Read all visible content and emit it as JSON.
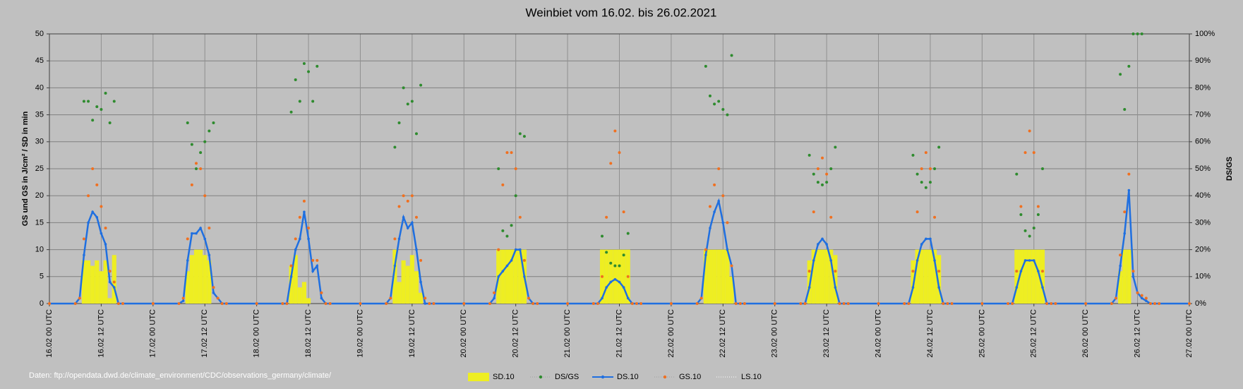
{
  "chart_data": {
    "type": "combo",
    "title": "Weinbiet vom 16.02. bis 26.02.2021",
    "y_label": "GS und GS in J/cm²  /  SD in min",
    "y2_label": "DS/GS",
    "source": "Daten: ftp://opendata.dwd.de/climate_environment/CDC/observations_germany/climate/",
    "x": [
      0,
      6,
      7,
      8,
      9,
      10,
      11,
      12,
      13,
      14,
      15,
      16,
      17,
      24,
      30,
      31,
      32,
      33,
      34,
      35,
      36,
      37,
      38,
      39,
      40,
      41,
      48,
      54,
      55,
      56,
      57,
      58,
      59,
      60,
      61,
      62,
      63,
      64,
      65,
      72,
      78,
      79,
      80,
      81,
      82,
      83,
      84,
      85,
      86,
      87,
      88,
      89,
      96,
      102,
      103,
      104,
      105,
      106,
      107,
      108,
      109,
      110,
      111,
      112,
      113,
      120,
      126,
      127,
      128,
      129,
      130,
      131,
      132,
      133,
      134,
      135,
      136,
      137,
      144,
      150,
      151,
      152,
      153,
      154,
      155,
      156,
      157,
      158,
      159,
      160,
      161,
      168,
      174,
      175,
      176,
      177,
      178,
      179,
      180,
      181,
      182,
      183,
      184,
      185,
      192,
      198,
      199,
      200,
      201,
      202,
      203,
      204,
      205,
      206,
      207,
      208,
      209,
      216,
      222,
      223,
      224,
      225,
      226,
      227,
      228,
      229,
      230,
      231,
      232,
      233,
      240,
      246,
      247,
      248,
      249,
      250,
      251,
      252,
      253,
      254,
      255,
      256,
      257,
      264
    ],
    "xlim": [
      0,
      264
    ],
    "xticks": [
      {
        "value": 0,
        "label": "16.02 00 UTC"
      },
      {
        "value": 12,
        "label": "16.02 12 UTC"
      },
      {
        "value": 24,
        "label": "17.02 00 UTC"
      },
      {
        "value": 36,
        "label": "17.02 12 UTC"
      },
      {
        "value": 48,
        "label": "18.02 00 UTC"
      },
      {
        "value": 60,
        "label": "18.02 12 UTC"
      },
      {
        "value": 72,
        "label": "19.02 00 UTC"
      },
      {
        "value": 84,
        "label": "19.02 12 UTC"
      },
      {
        "value": 96,
        "label": "20.02 00 UTC"
      },
      {
        "value": 108,
        "label": "20.02 12 UTC"
      },
      {
        "value": 120,
        "label": "21.02 00 UTC"
      },
      {
        "value": 132,
        "label": "21.02 12 UTC"
      },
      {
        "value": 144,
        "label": "22.02 00 UTC"
      },
      {
        "value": 156,
        "label": "22.02 12 UTC"
      },
      {
        "value": 168,
        "label": "23.02 00 UTC"
      },
      {
        "value": 180,
        "label": "23.02 12 UTC"
      },
      {
        "value": 192,
        "label": "24.02 00 UTC"
      },
      {
        "value": 204,
        "label": "24.02 12 UTC"
      },
      {
        "value": 216,
        "label": "25.02 00 UTC"
      },
      {
        "value": 228,
        "label": "25.02 12 UTC"
      },
      {
        "value": 240,
        "label": "26.02 00 UTC"
      },
      {
        "value": 252,
        "label": "26.02 12 UTC"
      },
      {
        "value": 264,
        "label": "27.02 00 UTC"
      }
    ],
    "ylim": [
      0,
      50
    ],
    "yticks": [
      0,
      5,
      10,
      15,
      20,
      25,
      30,
      35,
      40,
      45,
      50
    ],
    "y2lim": [
      0,
      100
    ],
    "y2ticks": [
      {
        "value": 0,
        "label": "0%"
      },
      {
        "value": 10,
        "label": "10%"
      },
      {
        "value": 20,
        "label": "20%"
      },
      {
        "value": 30,
        "label": "30%"
      },
      {
        "value": 40,
        "label": "40%"
      },
      {
        "value": 50,
        "label": "50%"
      },
      {
        "value": 60,
        "label": "60%"
      },
      {
        "value": 70,
        "label": "70%"
      },
      {
        "value": 80,
        "label": "80%"
      },
      {
        "value": 90,
        "label": "90%"
      },
      {
        "value": 100,
        "label": "100%"
      }
    ],
    "grid": true,
    "legend": "bottom",
    "series": [
      {
        "name": "SD.10",
        "kind": "bar",
        "color": "#eeee22",
        "values": [
          0,
          0,
          0,
          8,
          8,
          7,
          8,
          6,
          8,
          1,
          9,
          0,
          0,
          0,
          0,
          0,
          6,
          9,
          10,
          10,
          9,
          8,
          0,
          0,
          0,
          0,
          0,
          0,
          0,
          7,
          9,
          3,
          4,
          1,
          0,
          0,
          0,
          0,
          0,
          0,
          0,
          0,
          10,
          4,
          8,
          7,
          9,
          6,
          2,
          0,
          0,
          0,
          0,
          0,
          0,
          10,
          10,
          10,
          10,
          10,
          10,
          10,
          0,
          0,
          0,
          0,
          0,
          0,
          10,
          10,
          10,
          10,
          10,
          10,
          10,
          0,
          0,
          0,
          0,
          0,
          0,
          10,
          10,
          10,
          10,
          10,
          10,
          5,
          0,
          0,
          0,
          0,
          0,
          0,
          8,
          10,
          10,
          10,
          10,
          10,
          9,
          0,
          0,
          0,
          0,
          0,
          0,
          8,
          10,
          10,
          10,
          10,
          10,
          9,
          0,
          0,
          0,
          0,
          0,
          0,
          10,
          10,
          10,
          10,
          10,
          10,
          10,
          0,
          0,
          0,
          0,
          0,
          0,
          6,
          10,
          10,
          0,
          0,
          0,
          0,
          0,
          0,
          0,
          0
        ]
      },
      {
        "name": "DS/GS",
        "kind": "scatter",
        "axis": "y2",
        "color": "#2e8b2e",
        "values": [
          null,
          null,
          null,
          75,
          75,
          68,
          73,
          72,
          78,
          67,
          75,
          null,
          null,
          null,
          null,
          null,
          67,
          59,
          50,
          56,
          60,
          64,
          67,
          null,
          null,
          null,
          null,
          null,
          null,
          71,
          83,
          75,
          89,
          86,
          75,
          88,
          null,
          null,
          null,
          null,
          null,
          null,
          58,
          67,
          80,
          74,
          75,
          63,
          81,
          null,
          null,
          null,
          null,
          null,
          null,
          50,
          27,
          25,
          29,
          40,
          63,
          62,
          null,
          null,
          null,
          null,
          null,
          null,
          25,
          19,
          15,
          14,
          14,
          18,
          26,
          null,
          null,
          null,
          null,
          null,
          null,
          88,
          77,
          74,
          75,
          72,
          70,
          92,
          null,
          null,
          null,
          null,
          null,
          null,
          55,
          48,
          45,
          44,
          45,
          50,
          58,
          null,
          null,
          null,
          null,
          null,
          null,
          55,
          48,
          45,
          43,
          45,
          50,
          58,
          null,
          null,
          null,
          null,
          null,
          null,
          48,
          33,
          27,
          25,
          28,
          33,
          50,
          null,
          null,
          null,
          null,
          null,
          null,
          85,
          72,
          88,
          100,
          100,
          100,
          null,
          null,
          null,
          null,
          null
        ]
      },
      {
        "name": "DS.10",
        "kind": "line",
        "color": "#1f6fe0",
        "values": [
          0,
          0,
          1,
          9,
          15,
          17,
          16,
          13,
          11,
          4,
          3,
          0,
          0,
          0,
          0,
          0.5,
          8,
          13,
          13,
          14,
          12,
          9,
          2,
          1,
          0,
          0,
          0,
          0,
          0,
          5,
          10,
          12,
          17,
          12,
          6,
          7,
          1,
          0,
          0,
          0,
          0,
          1,
          7,
          12,
          16,
          14,
          15,
          10,
          4,
          0,
          0,
          0,
          0,
          0,
          1,
          5,
          6,
          7,
          8,
          10,
          10,
          5,
          1,
          0,
          0,
          0,
          0,
          0,
          1,
          3,
          4,
          4.5,
          4,
          3,
          1,
          0,
          0,
          0,
          0,
          0,
          1,
          9,
          14,
          17,
          19,
          15,
          10,
          7,
          0,
          0,
          0,
          0,
          0,
          0,
          3,
          8,
          11,
          12,
          11,
          8,
          3,
          0,
          0,
          0,
          0,
          0,
          0,
          3,
          8,
          11,
          12,
          12,
          8,
          3,
          0,
          0,
          0,
          0,
          0,
          0,
          3,
          6,
          8,
          8,
          8,
          6,
          3,
          0,
          0,
          0,
          0,
          0,
          1,
          7,
          13,
          21,
          5,
          2,
          1,
          0.5,
          0,
          0,
          0,
          0
        ]
      },
      {
        "name": "GS.10",
        "kind": "scatter",
        "color": "#f07020",
        "values": [
          0,
          0,
          1,
          12,
          20,
          25,
          22,
          18,
          14,
          6,
          4,
          0,
          0,
          0,
          0,
          1,
          12,
          22,
          26,
          25,
          20,
          14,
          3,
          1,
          0,
          0,
          0,
          0,
          0,
          7,
          12,
          16,
          19,
          14,
          8,
          8,
          2,
          0,
          0,
          0,
          0,
          1,
          12,
          18,
          20,
          19,
          20,
          16,
          8,
          1,
          0,
          0,
          0,
          0,
          2,
          10,
          22,
          28,
          28,
          25,
          16,
          8,
          1,
          0,
          0,
          0,
          0,
          0,
          5,
          16,
          26,
          32,
          28,
          17,
          5,
          0,
          0,
          0,
          0,
          0,
          1,
          10,
          18,
          22,
          25,
          20,
          15,
          7,
          0,
          0,
          0,
          0,
          0,
          0,
          6,
          17,
          25,
          27,
          24,
          16,
          6,
          0,
          0,
          0,
          0,
          0,
          0,
          6,
          17,
          25,
          28,
          25,
          16,
          6,
          0,
          0,
          0,
          0,
          0,
          0,
          6,
          18,
          28,
          32,
          28,
          18,
          6,
          0,
          0,
          0,
          0,
          0,
          1,
          9,
          17,
          24,
          6,
          2,
          1.5,
          1,
          0,
          0,
          0,
          0
        ]
      },
      {
        "name": "LS.10",
        "kind": "line",
        "dash": "dotted",
        "color": "#ffffff"
      }
    ]
  }
}
